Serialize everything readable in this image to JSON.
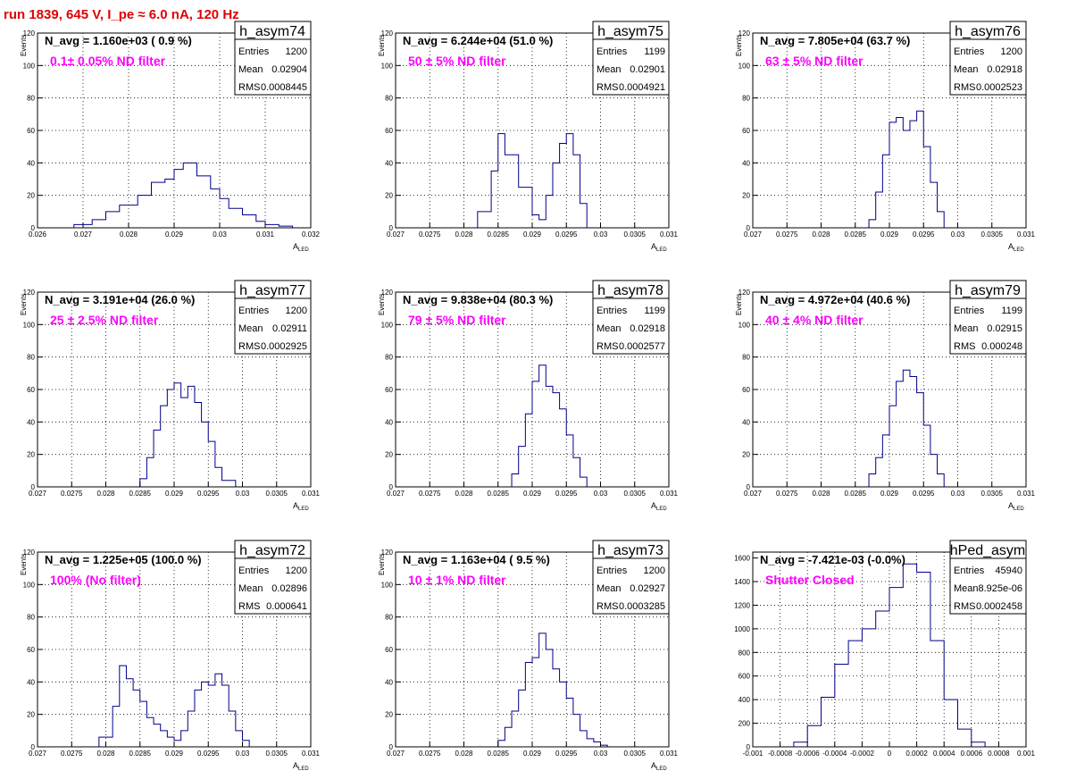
{
  "page_title": "run 1839,   645 V, I_pe ≈ 6.0 nA, 120 Hz",
  "colors": {
    "histogram": "#00008b",
    "annotation": "#ff00ff",
    "title": "#e00000",
    "grid": "#000000"
  },
  "chart_data": [
    {
      "type": "histogram",
      "name": "h_asym74",
      "header": "N_avg = 1.160e+03 ( 0.9 %)",
      "annotation": "0.1± 0.05% ND filter",
      "stats": {
        "entries": "1200",
        "mean": "0.02904",
        "rms": "0.0008445"
      },
      "xlim": [
        0.026,
        0.032
      ],
      "ylim": [
        0,
        120
      ],
      "xticks": [
        0.026,
        0.027,
        0.028,
        0.029,
        0.03,
        0.031,
        0.032
      ],
      "xtick_labels": [
        "0.026",
        "0.027",
        "0.028",
        "0.029",
        "0.03",
        "0.031",
        "0.032"
      ],
      "yticks": [
        0,
        20,
        40,
        60,
        80,
        100,
        120
      ],
      "ytick_labels": [
        "0",
        "20",
        "40",
        "60",
        "80",
        "100",
        "120"
      ],
      "xlabel": "A",
      "xlabel_sub": "LED",
      "ylabel": "Events",
      "x": [
        0.0265,
        0.0268,
        0.0272,
        0.0275,
        0.0278,
        0.0282,
        0.0285,
        0.0288,
        0.029,
        0.0292,
        0.0295,
        0.0298,
        0.03,
        0.0302,
        0.0305,
        0.0308,
        0.031,
        0.0313,
        0.0316
      ],
      "y": [
        0,
        2,
        5,
        10,
        14,
        20,
        28,
        30,
        36,
        40,
        32,
        24,
        18,
        12,
        8,
        4,
        2,
        1,
        0
      ]
    },
    {
      "type": "histogram",
      "name": "h_asym75",
      "header": "N_avg = 6.244e+04 (51.0 %)",
      "annotation": "50 ± 5% ND filter",
      "stats": {
        "entries": "1199",
        "mean": "0.02901",
        "rms": "0.0004921"
      },
      "xlim": [
        0.027,
        0.031
      ],
      "ylim": [
        0,
        120
      ],
      "xticks": [
        0.027,
        0.0275,
        0.028,
        0.0285,
        0.029,
        0.0295,
        0.03,
        0.0305,
        0.031
      ],
      "xtick_labels": [
        "0.027",
        "0.0275",
        "0.028",
        "0.0285",
        "0.029",
        "0.0295",
        "0.03",
        "0.0305",
        "0.031"
      ],
      "yticks": [
        0,
        20,
        40,
        60,
        80,
        100,
        120
      ],
      "ytick_labels": [
        "0",
        "20",
        "40",
        "60",
        "80",
        "100",
        "120"
      ],
      "xlabel": "A",
      "xlabel_sub": "LED",
      "ylabel": "Events",
      "x": [
        0.028,
        0.0282,
        0.0284,
        0.0285,
        0.0286,
        0.0288,
        0.029,
        0.0291,
        0.0292,
        0.0293,
        0.0294,
        0.0295,
        0.0296,
        0.0297,
        0.0298
      ],
      "y": [
        0,
        10,
        35,
        58,
        45,
        25,
        8,
        5,
        20,
        40,
        52,
        58,
        45,
        15,
        0
      ]
    },
    {
      "type": "histogram",
      "name": "h_asym76",
      "header": "N_avg = 7.805e+04 (63.7 %)",
      "annotation": "63 ± 5% ND filter",
      "stats": {
        "entries": "1200",
        "mean": "0.02918",
        "rms": "0.0002523"
      },
      "xlim": [
        0.027,
        0.031
      ],
      "ylim": [
        0,
        120
      ],
      "xticks": [
        0.027,
        0.0275,
        0.028,
        0.0285,
        0.029,
        0.0295,
        0.03,
        0.0305,
        0.031
      ],
      "xtick_labels": [
        "0.027",
        "0.0275",
        "0.028",
        "0.0285",
        "0.029",
        "0.0295",
        "0.03",
        "0.0305",
        "0.031"
      ],
      "yticks": [
        0,
        20,
        40,
        60,
        80,
        100,
        120
      ],
      "ytick_labels": [
        "0",
        "20",
        "40",
        "60",
        "80",
        "100",
        "120"
      ],
      "xlabel": "A",
      "xlabel_sub": "LED",
      "ylabel": "Events",
      "x": [
        0.0285,
        0.0287,
        0.0288,
        0.0289,
        0.029,
        0.0291,
        0.0292,
        0.0293,
        0.0294,
        0.0295,
        0.0296,
        0.0297,
        0.0298
      ],
      "y": [
        0,
        5,
        22,
        45,
        65,
        68,
        60,
        66,
        72,
        50,
        28,
        10,
        0
      ]
    },
    {
      "type": "histogram",
      "name": "h_asym77",
      "header": "N_avg = 3.191e+04 (26.0 %)",
      "annotation": "25 ± 2.5% ND filter",
      "stats": {
        "entries": "1200",
        "mean": "0.02911",
        "rms": "0.0002925"
      },
      "xlim": [
        0.027,
        0.031
      ],
      "ylim": [
        0,
        120
      ],
      "xticks": [
        0.027,
        0.0275,
        0.028,
        0.0285,
        0.029,
        0.0295,
        0.03,
        0.0305,
        0.031
      ],
      "xtick_labels": [
        "0.027",
        "0.0275",
        "0.028",
        "0.0285",
        "0.029",
        "0.0295",
        "0.03",
        "0.0305",
        "0.031"
      ],
      "yticks": [
        0,
        20,
        40,
        60,
        80,
        100,
        120
      ],
      "ytick_labels": [
        "0",
        "20",
        "40",
        "60",
        "80",
        "100",
        "120"
      ],
      "xlabel": "A",
      "xlabel_sub": "LED",
      "ylabel": "Events",
      "x": [
        0.0284,
        0.0285,
        0.0286,
        0.0287,
        0.0288,
        0.0289,
        0.029,
        0.0291,
        0.0292,
        0.0293,
        0.0294,
        0.0295,
        0.0296,
        0.0297,
        0.0299
      ],
      "y": [
        0,
        5,
        18,
        35,
        50,
        60,
        64,
        55,
        62,
        52,
        40,
        28,
        12,
        4,
        0
      ]
    },
    {
      "type": "histogram",
      "name": "h_asym78",
      "header": "N_avg = 9.838e+04 (80.3 %)",
      "annotation": "79 ± 5% ND filter",
      "stats": {
        "entries": "1199",
        "mean": "0.02918",
        "rms": "0.0002577"
      },
      "xlim": [
        0.027,
        0.031
      ],
      "ylim": [
        0,
        120
      ],
      "xticks": [
        0.027,
        0.0275,
        0.028,
        0.0285,
        0.029,
        0.0295,
        0.03,
        0.0305,
        0.031
      ],
      "xtick_labels": [
        "0.027",
        "0.0275",
        "0.028",
        "0.0285",
        "0.029",
        "0.0295",
        "0.03",
        "0.0305",
        "0.031"
      ],
      "yticks": [
        0,
        20,
        40,
        60,
        80,
        100,
        120
      ],
      "ytick_labels": [
        "0",
        "20",
        "40",
        "60",
        "80",
        "100",
        "120"
      ],
      "xlabel": "A",
      "xlabel_sub": "LED",
      "ylabel": "Events",
      "x": [
        0.0286,
        0.0287,
        0.0288,
        0.0289,
        0.029,
        0.0291,
        0.0292,
        0.0293,
        0.0294,
        0.0295,
        0.0296,
        0.0297,
        0.0298
      ],
      "y": [
        0,
        8,
        25,
        45,
        65,
        75,
        62,
        58,
        48,
        32,
        18,
        6,
        0
      ]
    },
    {
      "type": "histogram",
      "name": "h_asym79",
      "header": "N_avg = 4.972e+04 (40.6 %)",
      "annotation": "40 ± 4% ND filter",
      "stats": {
        "entries": "1199",
        "mean": "0.02915",
        "rms": "0.000248"
      },
      "xlim": [
        0.027,
        0.031
      ],
      "ylim": [
        0,
        120
      ],
      "xticks": [
        0.027,
        0.0275,
        0.028,
        0.0285,
        0.029,
        0.0295,
        0.03,
        0.0305,
        0.031
      ],
      "xtick_labels": [
        "0.027",
        "0.0275",
        "0.028",
        "0.0285",
        "0.029",
        "0.0295",
        "0.03",
        "0.0305",
        "0.031"
      ],
      "yticks": [
        0,
        20,
        40,
        60,
        80,
        100,
        120
      ],
      "ytick_labels": [
        "0",
        "20",
        "40",
        "60",
        "80",
        "100",
        "120"
      ],
      "xlabel": "A",
      "xlabel_sub": "LED",
      "ylabel": "Events",
      "x": [
        0.0286,
        0.0287,
        0.0288,
        0.0289,
        0.029,
        0.0291,
        0.0292,
        0.0293,
        0.0294,
        0.0295,
        0.0296,
        0.0297,
        0.0298
      ],
      "y": [
        0,
        8,
        18,
        32,
        50,
        65,
        72,
        68,
        58,
        38,
        20,
        8,
        0
      ]
    },
    {
      "type": "histogram",
      "name": "h_asym72",
      "header": "N_avg = 1.225e+05 (100.0 %)",
      "annotation": "100% (No filter)",
      "stats": {
        "entries": "1200",
        "mean": "0.02896",
        "rms": "0.000641"
      },
      "xlim": [
        0.027,
        0.031
      ],
      "ylim": [
        0,
        120
      ],
      "xticks": [
        0.027,
        0.0275,
        0.028,
        0.0285,
        0.029,
        0.0295,
        0.03,
        0.0305,
        0.031
      ],
      "xtick_labels": [
        "0.027",
        "0.0275",
        "0.028",
        "0.0285",
        "0.029",
        "0.0295",
        "0.03",
        "0.0305",
        "0.031"
      ],
      "yticks": [
        0,
        20,
        40,
        60,
        80,
        100,
        120
      ],
      "ytick_labels": [
        "0",
        "20",
        "40",
        "60",
        "80",
        "100",
        "120"
      ],
      "xlabel": "A",
      "xlabel_sub": "LED",
      "ylabel": "Events",
      "x": [
        0.0277,
        0.0279,
        0.0281,
        0.0282,
        0.0283,
        0.0284,
        0.0285,
        0.0286,
        0.0287,
        0.0288,
        0.0289,
        0.029,
        0.0291,
        0.0292,
        0.0293,
        0.0294,
        0.0295,
        0.0296,
        0.0297,
        0.0298,
        0.0299,
        0.03,
        0.0301
      ],
      "y": [
        0,
        6,
        25,
        50,
        42,
        35,
        28,
        18,
        14,
        10,
        6,
        4,
        10,
        22,
        35,
        40,
        38,
        45,
        38,
        22,
        10,
        4,
        0
      ]
    },
    {
      "type": "histogram",
      "name": "h_asym73",
      "header": "N_avg = 1.163e+04 ( 9.5 %)",
      "annotation": "10 ± 1% ND filter",
      "stats": {
        "entries": "1200",
        "mean": "0.02927",
        "rms": "0.0003285"
      },
      "xlim": [
        0.027,
        0.031
      ],
      "ylim": [
        0,
        120
      ],
      "xticks": [
        0.027,
        0.0275,
        0.028,
        0.0285,
        0.029,
        0.0295,
        0.03,
        0.0305,
        0.031
      ],
      "xtick_labels": [
        "0.027",
        "0.0275",
        "0.028",
        "0.0285",
        "0.029",
        "0.0295",
        "0.03",
        "0.0305",
        "0.031"
      ],
      "yticks": [
        0,
        20,
        40,
        60,
        80,
        100,
        120
      ],
      "ytick_labels": [
        "0",
        "20",
        "40",
        "60",
        "80",
        "100",
        "120"
      ],
      "xlabel": "A",
      "xlabel_sub": "LED",
      "ylabel": "Events",
      "x": [
        0.0284,
        0.0285,
        0.0286,
        0.0287,
        0.0288,
        0.0289,
        0.029,
        0.0291,
        0.0292,
        0.0293,
        0.0294,
        0.0295,
        0.0296,
        0.0297,
        0.0298,
        0.0299,
        0.03,
        0.0301
      ],
      "y": [
        0,
        4,
        12,
        22,
        35,
        52,
        55,
        70,
        60,
        48,
        40,
        30,
        20,
        10,
        5,
        3,
        1,
        0
      ]
    },
    {
      "type": "histogram",
      "name": "hPed_asym",
      "header": "N_avg = -7.421e-03 (-0.0%)",
      "annotation": "Shutter Closed",
      "stats": {
        "entries": "45940",
        "mean": "8.925e-06",
        "rms": "0.0002458"
      },
      "xlim": [
        -0.001,
        0.001
      ],
      "ylim": [
        0,
        1650
      ],
      "xticks": [
        -0.001,
        -0.0008,
        -0.0006,
        -0.0004,
        -0.0002,
        0,
        0.0002,
        0.0004,
        0.0006,
        0.0008,
        0.001
      ],
      "xtick_labels": [
        "-0.001",
        "-0.0008",
        "-0.0006",
        "-0.0004",
        "-0.0002",
        "0",
        "0.0002",
        "0.0004",
        "0.0006",
        "0.0008",
        "0.001"
      ],
      "yticks": [
        0,
        200,
        400,
        600,
        800,
        1000,
        1200,
        1400,
        1600
      ],
      "ytick_labels": [
        "0",
        "200",
        "400",
        "600",
        "800",
        "1000",
        "1200",
        "1400",
        "1600"
      ],
      "xlabel": "",
      "xlabel_sub": "",
      "ylabel": "",
      "x": [
        -0.0008,
        -0.0007,
        -0.0006,
        -0.0005,
        -0.0004,
        -0.0003,
        -0.0002,
        -0.0001,
        0,
        0.0001,
        0.0002,
        0.0003,
        0.0004,
        0.0005,
        0.0006,
        0.0007
      ],
      "y": [
        0,
        40,
        180,
        420,
        700,
        900,
        1000,
        1150,
        1350,
        1550,
        1480,
        900,
        400,
        150,
        40,
        0
      ]
    }
  ]
}
